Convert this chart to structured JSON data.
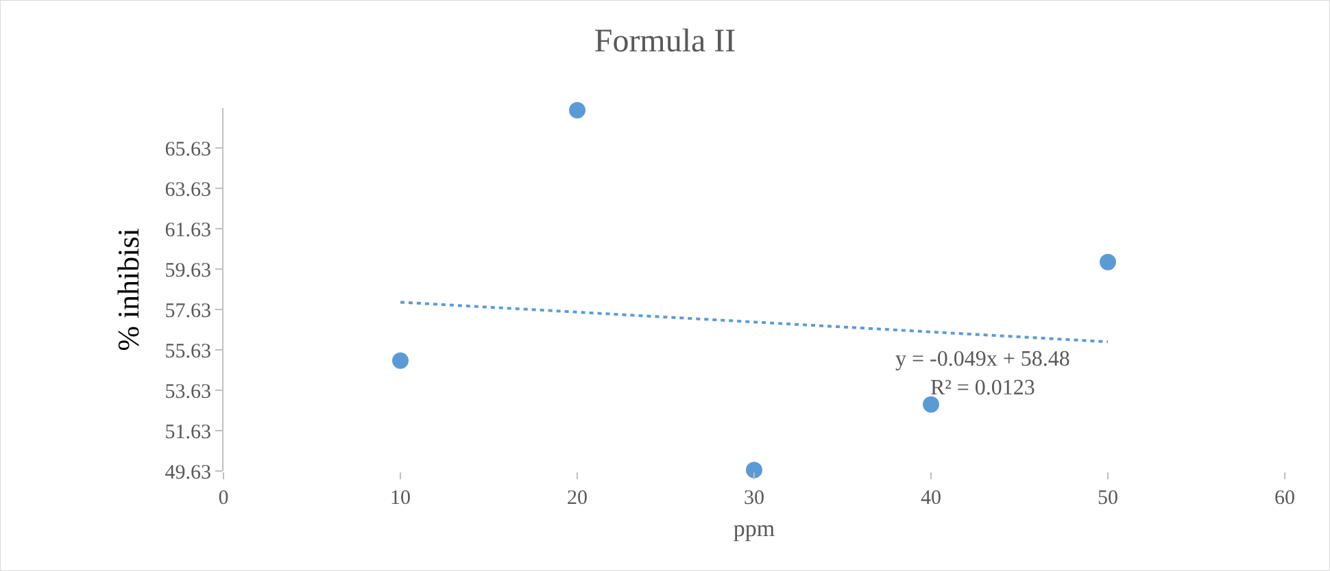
{
  "chart_data": {
    "type": "scatter",
    "title": "Formula II",
    "xlabel": "ppm",
    "ylabel": "% inhibisi",
    "x": [
      10,
      20,
      30,
      40,
      50
    ],
    "series": [
      {
        "color": "#5b9bd5",
        "values": [
          55.1,
          67.5,
          49.68,
          52.93,
          59.98
        ],
        "marker": "circle"
      },
      {
        "type": "line",
        "color": "#5b9bd5",
        "x": [
          10,
          50
        ],
        "values": [
          57.99,
          56.03
        ],
        "line_style": "dotted",
        "marker": "none"
      }
    ],
    "xlim": [
      0,
      60
    ],
    "xticks": [
      0,
      10,
      20,
      30,
      40,
      50,
      60
    ],
    "ylim": [
      49.63,
      67.6
    ],
    "yticks": [
      49.63,
      51.63,
      53.63,
      55.63,
      57.63,
      59.63,
      61.63,
      63.63,
      65.63
    ],
    "annotations": [
      "y = -0.049x + 58.48\nR² = 0.0123"
    ]
  }
}
